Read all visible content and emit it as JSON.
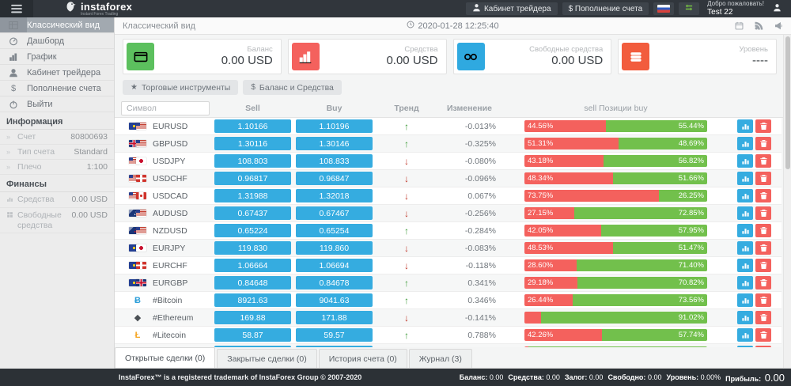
{
  "header": {
    "logo_title": "instaforex",
    "logo_subtitle": "Instant Forex Trading",
    "cabinet_btn": "Кабинет трейдера",
    "deposit_btn": "$ Пополнение счета",
    "welcome": "Добро пожаловать!",
    "username": "Test 22"
  },
  "sidebar": {
    "items": [
      {
        "label": "Классический вид",
        "icon": "table-icon",
        "active": true
      },
      {
        "label": "Дашборд",
        "icon": "dashboard-icon",
        "active": false
      },
      {
        "label": "График",
        "icon": "chart-icon",
        "active": false
      },
      {
        "label": "Кабинет трейдера",
        "icon": "user-icon",
        "active": false
      },
      {
        "label": "Пополнение счета",
        "icon": "dollar-icon",
        "active": false
      },
      {
        "label": "Выйти",
        "icon": "power-icon",
        "active": false
      }
    ],
    "info_title": "Информация",
    "info": [
      {
        "label": "Счет",
        "value": "80800693"
      },
      {
        "label": "Тип счета",
        "value": "Standard"
      },
      {
        "label": "Плечо",
        "value": "1:100"
      }
    ],
    "finance_title": "Финансы",
    "finance": [
      {
        "label": "Средства",
        "value": "0.00 USD",
        "icon": "mini-chart-icon"
      },
      {
        "label": "Свободные средства",
        "value": "0.00 USD",
        "icon": "mini-grid-icon"
      }
    ]
  },
  "topbar": {
    "title": "Классический вид",
    "datetime": "2020-01-28 12:25:40"
  },
  "cards": [
    {
      "label": "Баланс",
      "value": "0.00 USD",
      "icon": "credit-card-icon",
      "color": "#5cc05e"
    },
    {
      "label": "Средства",
      "value": "0.00 USD",
      "icon": "bar-chart-icon",
      "color": "#f4615d"
    },
    {
      "label": "Свободные средства",
      "value": "0.00 USD",
      "icon": "binoculars-icon",
      "color": "#2fa9e0"
    },
    {
      "label": "Уровень",
      "value": "----",
      "icon": "list-icon",
      "color": "#f25c3d"
    }
  ],
  "filters": [
    {
      "glyph": "★",
      "label": "Торговые инструменты"
    },
    {
      "glyph": "$",
      "label": "Баланс и Средства"
    }
  ],
  "table": {
    "symbol_placeholder": "Символ",
    "col_sell": "Sell",
    "col_buy": "Buy",
    "col_trend": "Тренд",
    "col_change": "Изменение",
    "col_positions": "sell Позиции buy",
    "rows": [
      {
        "symbol": "EURUSD",
        "flags": [
          "eu",
          "us"
        ],
        "sell": "1.10166",
        "buy": "1.10196",
        "trend": "up",
        "change": "-0.013%",
        "sell_pct": 44.56,
        "buy_pct": 55.44,
        "sell_label": "44.56%",
        "buy_label": "55.44%"
      },
      {
        "symbol": "GBPUSD",
        "flags": [
          "gb",
          "us"
        ],
        "sell": "1.30116",
        "buy": "1.30146",
        "trend": "up",
        "change": "-0.325%",
        "sell_pct": 51.31,
        "buy_pct": 48.69,
        "sell_label": "51.31%",
        "buy_label": "48.69%"
      },
      {
        "symbol": "USDJPY",
        "flags": [
          "us",
          "jp"
        ],
        "sell": "108.803",
        "buy": "108.833",
        "trend": "down",
        "change": "-0.080%",
        "sell_pct": 43.18,
        "buy_pct": 56.82,
        "sell_label": "43.18%",
        "buy_label": "56.82%"
      },
      {
        "symbol": "USDCHF",
        "flags": [
          "us",
          "ch"
        ],
        "sell": "0.96817",
        "buy": "0.96847",
        "trend": "down",
        "change": "-0.096%",
        "sell_pct": 48.34,
        "buy_pct": 51.66,
        "sell_label": "48.34%",
        "buy_label": "51.66%"
      },
      {
        "symbol": "USDCAD",
        "flags": [
          "us",
          "ca"
        ],
        "sell": "1.31988",
        "buy": "1.32018",
        "trend": "down",
        "change": "0.067%",
        "sell_pct": 73.75,
        "buy_pct": 26.25,
        "sell_label": "73.75%",
        "buy_label": "26.25%"
      },
      {
        "symbol": "AUDUSD",
        "flags": [
          "au",
          "us"
        ],
        "sell": "0.67437",
        "buy": "0.67467",
        "trend": "down",
        "change": "-0.256%",
        "sell_pct": 27.15,
        "buy_pct": 72.85,
        "sell_label": "27.15%",
        "buy_label": "72.85%"
      },
      {
        "symbol": "NZDUSD",
        "flags": [
          "nz",
          "us"
        ],
        "sell": "0.65224",
        "buy": "0.65254",
        "trend": "up",
        "change": "-0.284%",
        "sell_pct": 42.05,
        "buy_pct": 57.95,
        "sell_label": "42.05%",
        "buy_label": "57.95%"
      },
      {
        "symbol": "EURJPY",
        "flags": [
          "eu",
          "jp"
        ],
        "sell": "119.830",
        "buy": "119.860",
        "trend": "down",
        "change": "-0.083%",
        "sell_pct": 48.53,
        "buy_pct": 51.47,
        "sell_label": "48.53%",
        "buy_label": "51.47%"
      },
      {
        "symbol": "EURCHF",
        "flags": [
          "eu",
          "ch"
        ],
        "sell": "1.06664",
        "buy": "1.06694",
        "trend": "down",
        "change": "-0.118%",
        "sell_pct": 28.6,
        "buy_pct": 71.4,
        "sell_label": "28.60%",
        "buy_label": "71.40%"
      },
      {
        "symbol": "EURGBP",
        "flags": [
          "eu",
          "gb"
        ],
        "sell": "0.84648",
        "buy": "0.84678",
        "trend": "up",
        "change": "0.341%",
        "sell_pct": 29.18,
        "buy_pct": 70.82,
        "sell_label": "29.18%",
        "buy_label": "70.82%"
      },
      {
        "symbol": "#Bitcoin",
        "glyph": "Ƀ",
        "glyph_color": "#2d9fd9",
        "sell": "8921.63",
        "buy": "9041.63",
        "trend": "up",
        "change": "0.346%",
        "sell_pct": 26.44,
        "buy_pct": 73.56,
        "sell_label": "26.44%",
        "buy_label": "73.56%"
      },
      {
        "symbol": "#Ethereum",
        "glyph": "◆",
        "glyph_color": "#4a4f54",
        "sell": "169.88",
        "buy": "171.88",
        "trend": "down",
        "change": "-0.141%",
        "sell_pct": 8.98,
        "buy_pct": 91.02,
        "sell_label": "",
        "buy_label": "91.02%"
      },
      {
        "symbol": "#Litecoin",
        "glyph": "Ł",
        "glyph_color": "#f5a623",
        "sell": "58.87",
        "buy": "59.57",
        "trend": "up",
        "change": "0.788%",
        "sell_pct": 42.26,
        "buy_pct": 57.74,
        "sell_label": "42.26%",
        "buy_label": "57.74%"
      },
      {
        "symbol": "",
        "glyph": "●",
        "glyph_color": "#2d9fd9",
        "sell": "",
        "buy": "",
        "trend": "",
        "change": "",
        "sell_pct": 2,
        "buy_pct": 98,
        "sell_label": "",
        "buy_label": ""
      }
    ]
  },
  "tabs": [
    {
      "label": "Открытые сделки (0)",
      "active": true
    },
    {
      "label": "Закрытые сделки (0)",
      "active": false
    },
    {
      "label": "История счета (0)",
      "active": false
    },
    {
      "label": "Журнал (3)",
      "active": false
    }
  ],
  "footer": {
    "copyright": "InstaForex™ is a registered trademark of InstaForex Group © 2007-2020",
    "stats": [
      {
        "label": "Баланс:",
        "value": "0.00"
      },
      {
        "label": "Средства:",
        "value": "0.00"
      },
      {
        "label": "Залог:",
        "value": "0.00"
      },
      {
        "label": "Свободно:",
        "value": "0.00"
      },
      {
        "label": "Уровень:",
        "value": "0.00%"
      },
      {
        "label": "Прибыль:",
        "value": "0.00",
        "big": true
      }
    ]
  }
}
